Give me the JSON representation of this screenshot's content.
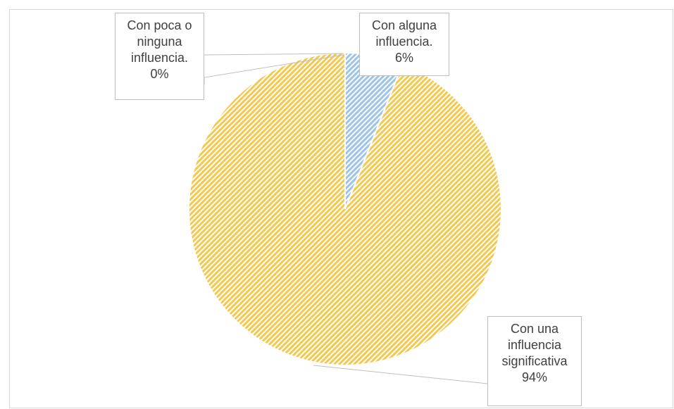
{
  "chart_data": {
    "type": "pie",
    "categories": [
      "Con poca o ninguna influencia.",
      "Con alguna influencia.",
      "Con una influencia significativa"
    ],
    "values": [
      0,
      6,
      94
    ],
    "value_labels": [
      "0%",
      "6%",
      "94%"
    ],
    "colors": [
      "#f2c94e",
      "#9dc3e6",
      "#f2c94e"
    ]
  }
}
